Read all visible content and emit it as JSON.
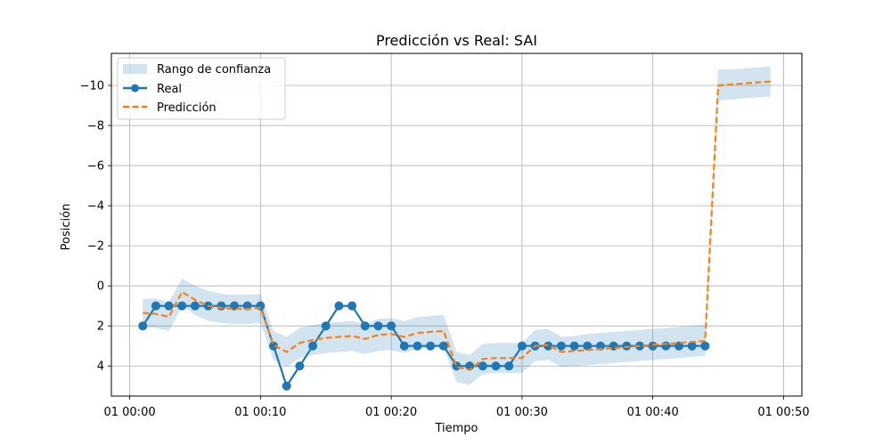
{
  "chart_data": {
    "type": "line",
    "title": "Predicción vs Real: SAI",
    "xlabel": "Tiempo",
    "ylabel": "Posición",
    "y_inverted": true,
    "ylim": [
      5.5,
      -11.6
    ],
    "xlim_minutes": [
      -1.4,
      51.4
    ],
    "grid": true,
    "legend_position": "top-left",
    "x_ticks": [
      {
        "minute": 0,
        "label": "01 00:00"
      },
      {
        "minute": 10,
        "label": "01 00:10"
      },
      {
        "minute": 20,
        "label": "01 00:20"
      },
      {
        "minute": 30,
        "label": "01 00:30"
      },
      {
        "minute": 40,
        "label": "01 00:40"
      },
      {
        "minute": 50,
        "label": "01 00:50"
      }
    ],
    "y_ticks": [
      {
        "value": 4,
        "label": "4"
      },
      {
        "value": 2,
        "label": "2"
      },
      {
        "value": 0,
        "label": "0"
      },
      {
        "value": -2,
        "label": "−2"
      },
      {
        "value": -4,
        "label": "−4"
      },
      {
        "value": -6,
        "label": "−6"
      },
      {
        "value": -8,
        "label": "−8"
      },
      {
        "value": -10,
        "label": "−10"
      }
    ],
    "series": [
      {
        "name": "Real",
        "color": "#1f77b4",
        "style": "solid-markers",
        "x": [
          1,
          2,
          3,
          4,
          5,
          6,
          7,
          8,
          9,
          10,
          11,
          12,
          13,
          14,
          15,
          16,
          17,
          18,
          19,
          20,
          21,
          22,
          23,
          24,
          25,
          26,
          27,
          28,
          29,
          30,
          31,
          32,
          33,
          34,
          35,
          36,
          37,
          38,
          39,
          40,
          41,
          42,
          43,
          44
        ],
        "y": [
          2,
          1,
          1,
          1,
          1,
          1,
          1,
          1,
          1,
          1,
          3,
          5,
          4,
          3,
          2,
          1,
          1,
          2,
          2,
          2,
          3,
          3,
          3,
          3,
          4,
          4,
          4,
          4,
          4,
          3,
          3,
          3,
          3,
          3,
          3,
          3,
          3,
          3,
          3,
          3,
          3,
          3,
          3,
          3
        ]
      },
      {
        "name": "Predicción",
        "color": "#ff7f0e",
        "style": "dashed",
        "x": [
          1,
          2,
          3,
          4,
          5,
          6,
          7,
          8,
          9,
          10,
          11,
          12,
          13,
          14,
          15,
          16,
          17,
          18,
          19,
          20,
          21,
          22,
          23,
          24,
          25,
          26,
          27,
          28,
          29,
          30,
          31,
          32,
          33,
          34,
          35,
          36,
          37,
          38,
          39,
          40,
          41,
          42,
          43,
          44,
          45,
          46,
          47,
          48,
          49
        ],
        "y": [
          1.35,
          1.4,
          1.55,
          0.3,
          0.7,
          1.0,
          1.1,
          1.15,
          1.15,
          1.1,
          2.95,
          3.3,
          2.85,
          2.7,
          2.6,
          2.55,
          2.5,
          2.65,
          2.45,
          2.4,
          2.55,
          2.35,
          2.3,
          2.25,
          4.05,
          4.2,
          3.65,
          3.6,
          3.6,
          3.6,
          3.0,
          2.95,
          3.3,
          3.25,
          3.2,
          3.15,
          3.1,
          3.05,
          3.0,
          2.95,
          2.9,
          2.85,
          2.8,
          2.75,
          -10.0,
          -10.05,
          -10.1,
          -10.15,
          -10.2
        ]
      }
    ],
    "confidence_band": {
      "name": "Rango de confianza",
      "color": "#1f77b4",
      "opacity": 0.2,
      "x": [
        1,
        2,
        3,
        4,
        5,
        6,
        7,
        8,
        9,
        10,
        11,
        12,
        13,
        14,
        15,
        16,
        17,
        18,
        19,
        20,
        21,
        22,
        23,
        24,
        25,
        26,
        27,
        28,
        29,
        30,
        31,
        32,
        33,
        34,
        35,
        36,
        37,
        38,
        39,
        40,
        41,
        42,
        43,
        44,
        45,
        46,
        47,
        48,
        49
      ],
      "lower": [
        0.65,
        0.65,
        0.8,
        -0.35,
        0.0,
        0.25,
        0.4,
        0.45,
        0.45,
        0.4,
        2.25,
        2.55,
        2.1,
        1.95,
        1.85,
        1.8,
        1.75,
        1.9,
        1.65,
        1.6,
        1.75,
        1.55,
        1.5,
        1.45,
        3.3,
        3.45,
        2.9,
        2.85,
        2.85,
        2.85,
        2.2,
        2.15,
        2.55,
        2.5,
        2.4,
        2.35,
        2.3,
        2.25,
        2.2,
        2.15,
        2.1,
        2.05,
        2.0,
        1.95,
        -10.8,
        -10.8,
        -10.85,
        -10.9,
        -10.95
      ],
      "upper": [
        2.05,
        2.1,
        2.25,
        1.0,
        1.45,
        1.75,
        1.85,
        1.9,
        1.9,
        1.85,
        3.7,
        4.05,
        3.6,
        3.45,
        3.35,
        3.3,
        3.25,
        3.4,
        3.25,
        3.2,
        3.35,
        3.15,
        3.1,
        3.05,
        4.8,
        4.95,
        4.4,
        4.35,
        4.35,
        4.35,
        3.75,
        3.7,
        4.05,
        4.0,
        3.95,
        3.9,
        3.85,
        3.8,
        3.75,
        3.7,
        3.65,
        3.6,
        3.55,
        3.5,
        -9.25,
        -9.3,
        -9.35,
        -9.4,
        -9.45
      ]
    }
  }
}
